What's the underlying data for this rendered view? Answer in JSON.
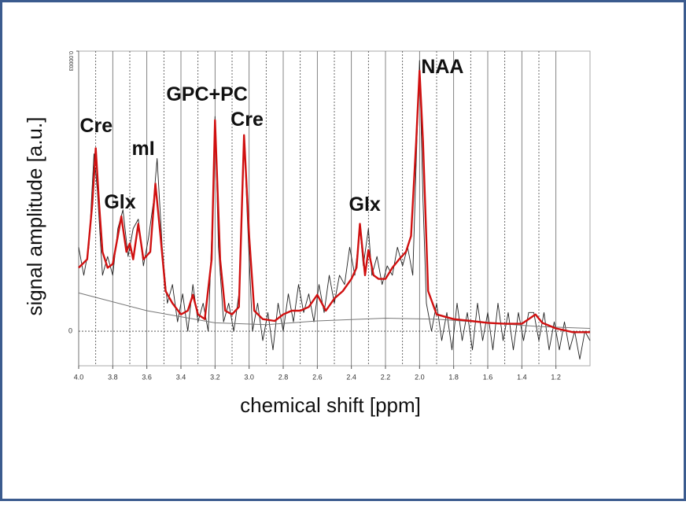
{
  "chart_data": {
    "type": "line",
    "xlabel": "chemical shift [ppm]",
    "ylabel": "signal amplitude [a.u.]",
    "xlim": [
      4.0,
      1.0
    ],
    "ylim": [
      -3.7e-06,
      3e-05
    ],
    "xticks": [
      {
        "value": 4,
        "label": "4.0"
      },
      3.8,
      3.6,
      3.4,
      3.2,
      {
        "value": 3,
        "label": "3.0"
      },
      2.8,
      2.6,
      2.4,
      2.2,
      {
        "value": 2,
        "label": "2.0"
      },
      1.8,
      1.6,
      1.4,
      1.2
    ],
    "yticks": [
      0,
      3e-05
    ],
    "grid": true,
    "annotations": [
      {
        "text": "Cre",
        "x": 3.91
      },
      {
        "text": "Glx",
        "x": 3.74
      },
      {
        "text": "mI",
        "x": 3.55
      },
      {
        "text": "GPC+PC",
        "x": 3.2
      },
      {
        "text": "Cre",
        "x": 3.03
      },
      {
        "text": "Glx",
        "x": 2.35
      },
      {
        "text": "NAA",
        "x": 2.0
      }
    ],
    "series": [
      {
        "color": "#222222",
        "x": [
          4.0,
          3.97,
          3.94,
          3.91,
          3.89,
          3.86,
          3.83,
          3.8,
          3.77,
          3.74,
          3.71,
          3.68,
          3.65,
          3.62,
          3.59,
          3.56,
          3.54,
          3.51,
          3.48,
          3.45,
          3.42,
          3.39,
          3.36,
          3.33,
          3.3,
          3.27,
          3.24,
          3.21,
          3.2,
          3.18,
          3.15,
          3.12,
          3.09,
          3.06,
          3.03,
          3.01,
          2.98,
          2.95,
          2.92,
          2.89,
          2.86,
          2.83,
          2.8,
          2.77,
          2.74,
          2.71,
          2.68,
          2.65,
          2.62,
          2.59,
          2.56,
          2.53,
          2.5,
          2.47,
          2.44,
          2.41,
          2.38,
          2.35,
          2.33,
          2.3,
          2.28,
          2.25,
          2.22,
          2.19,
          2.16,
          2.13,
          2.1,
          2.07,
          2.04,
          2.02,
          2.0,
          1.98,
          1.96,
          1.93,
          1.9,
          1.87,
          1.84,
          1.81,
          1.78,
          1.75,
          1.72,
          1.69,
          1.66,
          1.63,
          1.6,
          1.57,
          1.54,
          1.51,
          1.48,
          1.45,
          1.42,
          1.39,
          1.36,
          1.33,
          1.3,
          1.27,
          1.24,
          1.21,
          1.18,
          1.15,
          1.12,
          1.09,
          1.06,
          1.03,
          1.0
        ],
        "values": [
          9e-06,
          6e-06,
          9e-06,
          1.9e-05,
          1.5e-05,
          6e-06,
          8e-06,
          6e-06,
          1.1e-05,
          1.3e-05,
          8e-06,
          1.1e-05,
          1.2e-05,
          7e-06,
          1e-05,
          1.4e-05,
          1.85e-05,
          9e-06,
          3e-06,
          5e-06,
          1e-06,
          4e-06,
          0.0,
          5e-06,
          1e-06,
          3e-06,
          0.0,
          1.5e-05,
          2.3e-05,
          9e-06,
          1e-06,
          3e-06,
          0.0,
          4e-06,
          2.1e-05,
          1.2e-05,
          0.0,
          3e-06,
          -1e-06,
          2e-06,
          -2e-06,
          3e-06,
          0.0,
          4e-06,
          1e-06,
          5e-06,
          2e-06,
          4e-06,
          1e-06,
          5e-06,
          2e-06,
          6e-06,
          3e-06,
          6e-06,
          5e-06,
          9e-06,
          6e-06,
          1.1e-05,
          7e-06,
          1.1e-05,
          6e-06,
          8e-06,
          5e-06,
          7e-06,
          6e-06,
          9e-06,
          7e-06,
          9e-06,
          6e-06,
          1.8e-05,
          2.9e-05,
          1.4e-05,
          3e-06,
          0.0,
          3e-06,
          -1e-06,
          2e-06,
          -2e-06,
          3e-06,
          -1e-06,
          2e-06,
          -2e-06,
          3e-06,
          -1e-06,
          2e-06,
          -2e-06,
          3e-06,
          -1e-06,
          2e-06,
          -2e-06,
          2e-06,
          -1e-06,
          2e-06,
          2e-06,
          -1e-06,
          2e-06,
          -2e-06,
          1e-06,
          -2e-06,
          1e-06,
          -2e-06,
          0.0,
          -3e-06,
          0.0,
          -1e-06
        ]
      },
      {
        "color": "#777777",
        "x": [
          4.0,
          3.6,
          3.2,
          2.9,
          2.6,
          2.2,
          1.9,
          1.6,
          1.3,
          1.0
        ],
        "values": [
          4.1e-06,
          2.2e-06,
          9e-07,
          7e-07,
          1.1e-06,
          1.4e-06,
          1.3e-06,
          9e-07,
          5e-07,
          3e-07
        ]
      },
      {
        "color": "#d01010",
        "x": [
          4.0,
          3.95,
          3.92,
          3.9,
          3.88,
          3.86,
          3.83,
          3.8,
          3.77,
          3.75,
          3.72,
          3.7,
          3.68,
          3.65,
          3.62,
          3.58,
          3.55,
          3.52,
          3.49,
          3.45,
          3.4,
          3.36,
          3.33,
          3.3,
          3.26,
          3.22,
          3.2,
          3.17,
          3.14,
          3.1,
          3.06,
          3.03,
          3.0,
          2.97,
          2.92,
          2.85,
          2.8,
          2.75,
          2.7,
          2.65,
          2.6,
          2.55,
          2.5,
          2.45,
          2.4,
          2.37,
          2.35,
          2.32,
          2.3,
          2.27,
          2.24,
          2.2,
          2.16,
          2.12,
          2.08,
          2.05,
          2.02,
          2.0,
          1.98,
          1.95,
          1.9,
          1.8,
          1.7,
          1.6,
          1.5,
          1.4,
          1.32,
          1.28,
          1.2,
          1.1,
          1.0
        ],
        "values": [
          6.8e-06,
          7.7e-06,
          1.36e-05,
          1.96e-05,
          1.36e-05,
          8.5e-06,
          6.8e-06,
          7.2e-06,
          1.02e-05,
          1.23e-05,
          8.5e-06,
          9.4e-06,
          7.7e-06,
          1.15e-05,
          7.7e-06,
          8.5e-06,
          1.58e-05,
          1.02e-05,
          4.3e-06,
          3e-06,
          1.8e-06,
          2.2e-06,
          3.9e-06,
          1.8e-06,
          1.3e-06,
          7.7e-06,
          2.26e-05,
          7.7e-06,
          2.2e-06,
          1.8e-06,
          2.6e-06,
          2.1e-05,
          1.02e-05,
          2.2e-06,
          1.3e-06,
          1.1e-06,
          1.8e-06,
          2.2e-06,
          2.2e-06,
          2.6e-06,
          3.9e-06,
          2.2e-06,
          3.5e-06,
          4.3e-06,
          5.6e-06,
          6.8e-06,
          1.15e-05,
          6e-06,
          8.7e-06,
          6e-06,
          5.6e-06,
          5.6e-06,
          6.8e-06,
          7.7e-06,
          8.5e-06,
          1.02e-05,
          2.03e-05,
          2.79e-05,
          2.03e-05,
          4.3e-06,
          1.8e-06,
          1.3e-06,
          1.1e-06,
          9e-07,
          8e-07,
          8e-07,
          1.8e-06,
          9e-07,
          3e-07,
          -1e-07,
          -1e-07
        ]
      }
    ]
  }
}
